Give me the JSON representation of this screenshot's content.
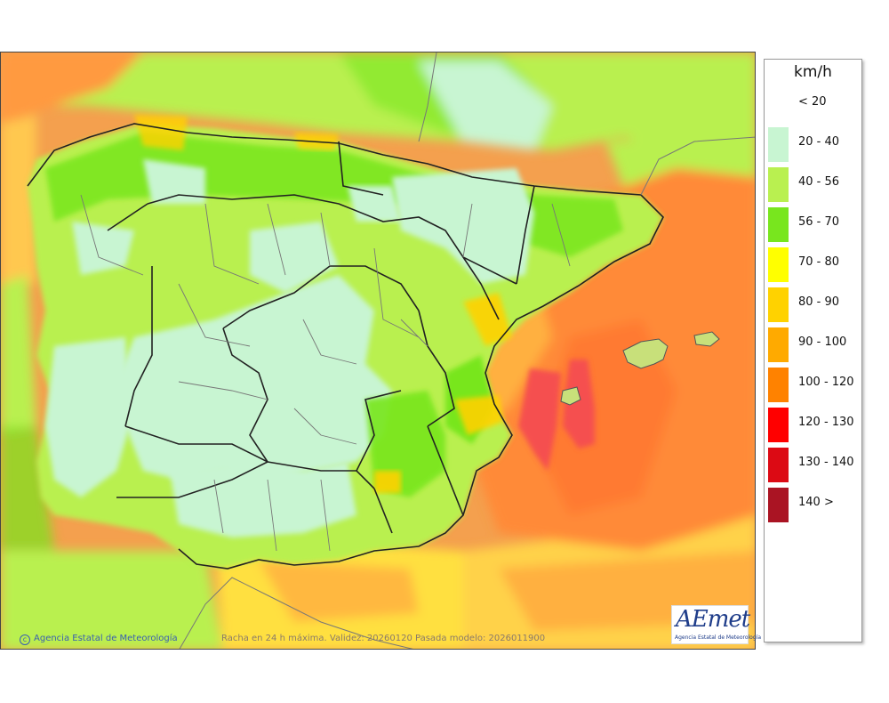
{
  "map": {
    "credit": "Agencia Estatal de Meteorología",
    "caption": "Racha en 24 h máxima. Validez: 20260120 Pasada modelo: 2026011900",
    "logo_text": "AEmet",
    "logo_subtitle": "Agencia Estatal de Meteorología"
  },
  "legend": {
    "title": "km/h",
    "items": [
      {
        "label": "< 20",
        "color": "#ffffff"
      },
      {
        "label": "20 - 40",
        "color": "#c8f5d2"
      },
      {
        "label": "40 - 56",
        "color": "#b9f050"
      },
      {
        "label": "56 - 70",
        "color": "#78e61e"
      },
      {
        "label": "70 - 80",
        "color": "#ffff00"
      },
      {
        "label": "80 - 90",
        "color": "#ffd200"
      },
      {
        "label": "90 - 100",
        "color": "#ffaa00"
      },
      {
        "label": "100 - 120",
        "color": "#ff8200"
      },
      {
        "label": "120 - 130",
        "color": "#ff0000"
      },
      {
        "label": "130 - 140",
        "color": "#dc0a14"
      },
      {
        "label": "140 >",
        "color": "#aa1423"
      }
    ]
  }
}
